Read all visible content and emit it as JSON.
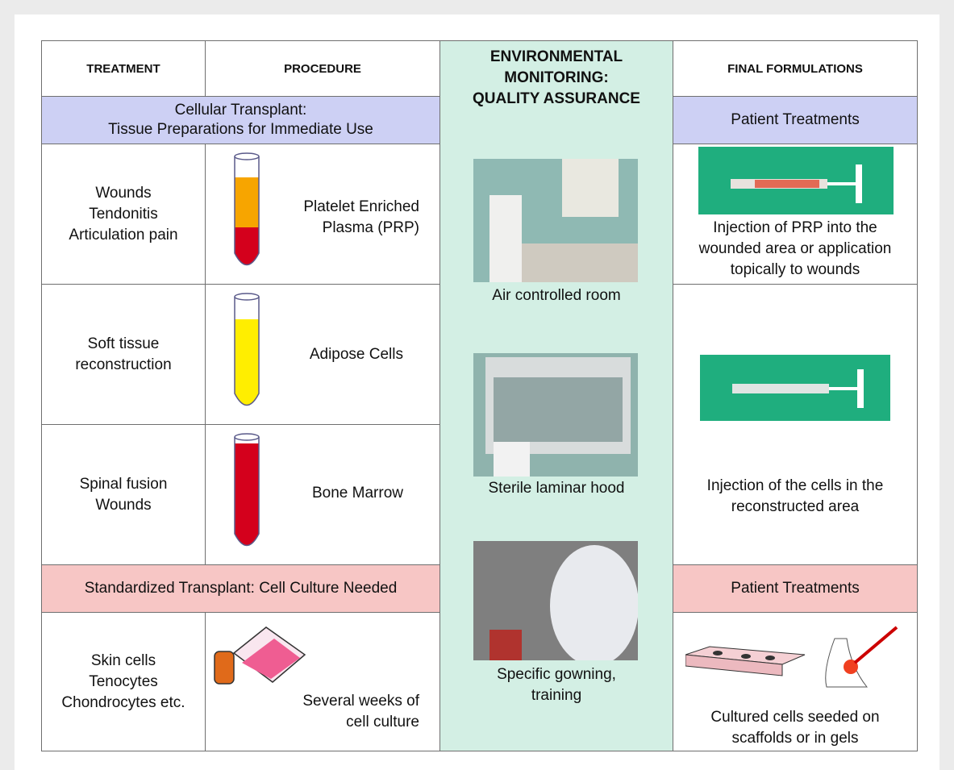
{
  "header": {
    "treatment": "TREATMENT",
    "procedure": "PROCEDURE",
    "monitoring": "ENVIRONMENTAL\nMONITORING:\nQUALITY ASSURANCE",
    "formulations": "FINAL FORMULATIONS"
  },
  "bands": [
    {
      "title": "Cellular Transplant:\nTissue Preparations for Immediate Use",
      "side": "Patient Treatments"
    },
    {
      "title": "Standardized Transplant: Cell Culture Needed",
      "side": "Patient Treatments"
    }
  ],
  "rows": [
    {
      "treatment": "Wounds\nTendonitis\nArticulation pain",
      "procedure": "Platelet Enriched\nPlasma (PRP)"
    },
    {
      "treatment": "Soft tissue\nreconstruction",
      "procedure": "Adipose Cells"
    },
    {
      "treatment": "Spinal fusion\nWounds",
      "procedure": "Bone Marrow"
    },
    {
      "treatment": "Skin cells\nTenocytes\nChondrocytes etc.",
      "procedure": "Several weeks of\ncell culture"
    }
  ],
  "monitoring": [
    "Air controlled room",
    "Sterile laminar hood",
    "Specific gowning,\ntraining"
  ],
  "formulations": [
    "Injection of PRP into the\nwounded area or application\ntopically to wounds",
    "Injection of the cells in the\nreconstructed area",
    "Cultured cells seeded on\nscaffolds or in gels"
  ]
}
